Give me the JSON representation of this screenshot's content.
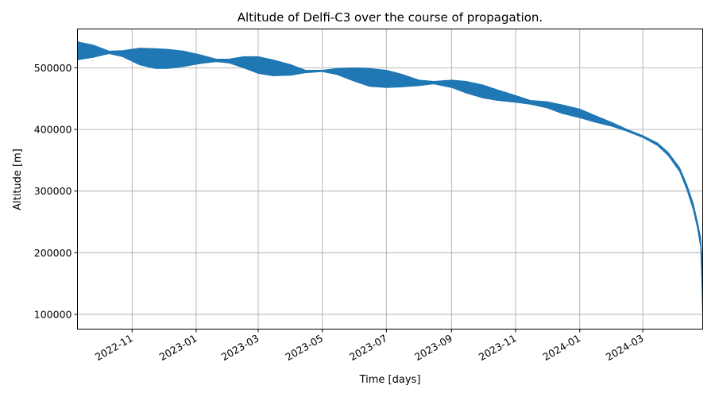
{
  "chart_data": {
    "type": "area",
    "title": "Altitude of Delfi-C3 over the course of propagation.",
    "xlabel": "Time [days]",
    "ylabel": "Altitude [m]",
    "x_axis_type": "date",
    "xlim": [
      "2022-09-10",
      "2024-04-27"
    ],
    "ylim": [
      76000,
      563000
    ],
    "grid": true,
    "x_ticks": [
      "2022-11",
      "2023-01",
      "2023-03",
      "2023-05",
      "2023-07",
      "2023-09",
      "2023-11",
      "2024-01",
      "2024-03"
    ],
    "y_ticks": [
      100000,
      200000,
      300000,
      400000,
      500000
    ],
    "y_tick_labels": [
      "100000",
      "200000",
      "300000",
      "400000",
      "500000"
    ],
    "series_color": "#1f77b4",
    "series": [
      {
        "x": [
          "2022-09-10",
          "2022-09-25",
          "2022-10-10",
          "2022-10-23",
          "2022-11-08",
          "2022-11-23",
          "2022-12-05",
          "2022-12-20",
          "2023-01-05",
          "2023-01-20",
          "2023-02-01",
          "2023-02-15",
          "2023-03-01",
          "2023-03-15",
          "2023-04-01",
          "2023-04-15",
          "2023-05-01",
          "2023-05-15",
          "2023-06-01",
          "2023-06-15",
          "2023-07-01",
          "2023-07-15",
          "2023-08-01",
          "2023-08-15",
          "2023-09-01",
          "2023-09-15",
          "2023-10-01",
          "2023-10-15",
          "2023-11-01",
          "2023-11-15",
          "2023-12-01",
          "2023-12-15",
          "2024-01-01",
          "2024-01-15",
          "2024-02-01",
          "2024-02-15",
          "2024-03-01",
          "2024-03-15",
          "2024-03-25",
          "2024-04-05",
          "2024-04-12",
          "2024-04-18",
          "2024-04-22",
          "2024-04-25",
          "2024-04-26",
          "2024-04-27"
        ],
        "upper": [
          542000,
          537000,
          527000,
          528000,
          532000,
          531000,
          530000,
          527000,
          521000,
          514000,
          514000,
          518000,
          518000,
          513000,
          505000,
          496000,
          496000,
          499000,
          500000,
          499000,
          496000,
          490000,
          480000,
          478000,
          480000,
          478000,
          472000,
          464000,
          455000,
          447000,
          445000,
          440000,
          433000,
          423000,
          411000,
          400000,
          390000,
          378000,
          363000,
          338000,
          310000,
          280000,
          250000,
          225000,
          200000,
          180000
        ],
        "lower": [
          513000,
          517000,
          523000,
          518000,
          505000,
          499000,
          499000,
          502000,
          507000,
          510000,
          508000,
          500000,
          491000,
          487000,
          488000,
          492000,
          494000,
          489000,
          478000,
          470000,
          468000,
          469000,
          471000,
          474000,
          468000,
          459000,
          451000,
          447000,
          444000,
          441000,
          435000,
          426000,
          419000,
          412000,
          405000,
          397000,
          387000,
          374000,
          358000,
          332000,
          302000,
          270000,
          240000,
          210000,
          160000,
          100000
        ]
      }
    ]
  }
}
